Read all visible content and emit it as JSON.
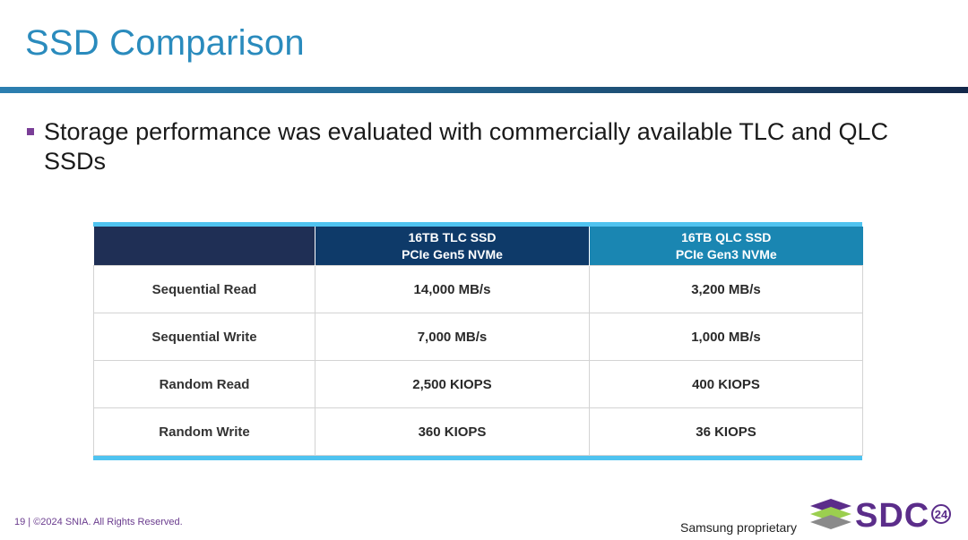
{
  "slide": {
    "title": "SSD Comparison",
    "bullet": "Storage performance was evaluated with commercially available TLC and QLC SSDs"
  },
  "table": {
    "headers": [
      {
        "line1": "",
        "line2": ""
      },
      {
        "line1": "16TB TLC SSD",
        "line2": "PCIe Gen5 NVMe"
      },
      {
        "line1": "16TB QLC SSD",
        "line2": "PCIe Gen3 NVMe"
      }
    ],
    "rows": [
      {
        "label": "Sequential Read",
        "tlc": "14,000 MB/s",
        "qlc": "3,200 MB/s"
      },
      {
        "label": "Sequential Write",
        "tlc": "7,000 MB/s",
        "qlc": "1,000 MB/s"
      },
      {
        "label": "Random Read",
        "tlc": "2,500 KIOPS",
        "qlc": "400 KIOPS"
      },
      {
        "label": "Random Write",
        "tlc": "360 KIOPS",
        "qlc": "36 KIOPS"
      }
    ]
  },
  "footer": {
    "copyright": "19 | ©2024 SNIA. All Rights Reserved.",
    "proprietary": "Samsung proprietary"
  },
  "logo": {
    "text": "SDC",
    "badge": "24",
    "colors": {
      "brand_purple": "#5b2d8a",
      "brand_green": "#9bcf4f",
      "accent_grey": "#8a8a8a"
    }
  },
  "colors": {
    "title": "#2a8bbd",
    "rule_accent": "#4fc3f0",
    "header_tlc": "#0e3a69",
    "header_qlc": "#1a86b2",
    "header_empty": "#1f2f55",
    "bullet": "#7a3e97"
  }
}
